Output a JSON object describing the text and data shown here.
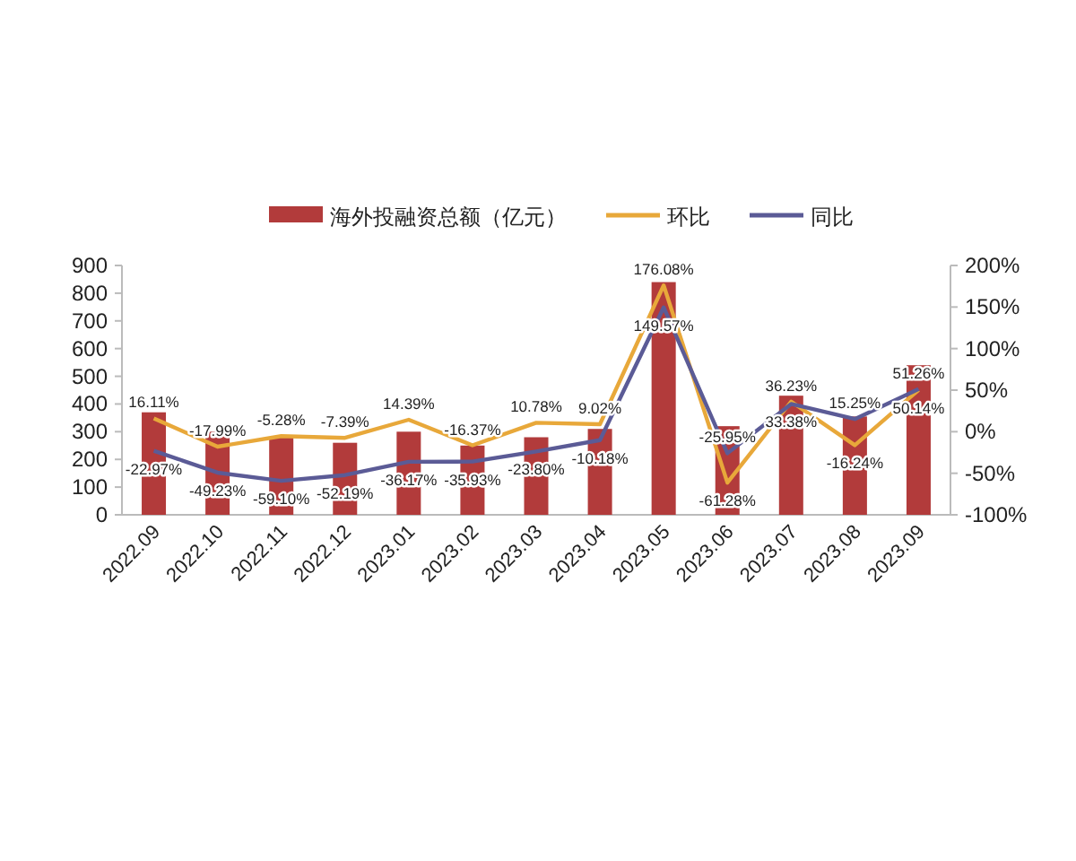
{
  "chart_data": {
    "type": "bar",
    "categories": [
      "2022.09",
      "2022.10",
      "2022.11",
      "2022.12",
      "2023.01",
      "2023.02",
      "2023.03",
      "2023.04",
      "2023.05",
      "2023.06",
      "2023.07",
      "2023.08",
      "2023.09"
    ],
    "series": [
      {
        "name": "海外投融资总额（亿元）",
        "color": "#b23b3b",
        "values": [
          370,
          300,
          280,
          260,
          300,
          250,
          280,
          310,
          840,
          320,
          430,
          355,
          540
        ]
      },
      {
        "name": "环比",
        "type": "line",
        "axis": "y2",
        "color": "#e8a83a",
        "values": [
          16.11,
          -17.99,
          -5.28,
          -7.39,
          14.39,
          -16.37,
          10.78,
          9.02,
          176.08,
          -61.28,
          36.23,
          -16.24,
          50.14
        ],
        "value_labels": [
          "16.11%",
          "-17.99%",
          "-5.28%",
          "-7.39%",
          "14.39%",
          "-16.37%",
          "10.78%",
          "9.02%",
          "176.08%",
          "-61.28%",
          "36.23%",
          "-16.24%",
          "50.14%"
        ]
      },
      {
        "name": "同比",
        "type": "line",
        "axis": "y2",
        "color": "#5b5b96",
        "values": [
          -22.97,
          -49.23,
          -59.1,
          -52.19,
          -36.17,
          -35.93,
          -23.8,
          -10.18,
          149.57,
          -25.95,
          33.38,
          15.25,
          51.26
        ],
        "value_labels": [
          "-22.97%",
          "-49.23%",
          "-59.10%",
          "-52.19%",
          "-36.17%",
          "-35.93%",
          "-23.80%",
          "-10.18%",
          "149.57%",
          "-25.95%",
          "33.38%",
          "15.25%",
          "51.26%"
        ]
      }
    ],
    "ylim": [
      0,
      900
    ],
    "yticks": [
      0,
      100,
      200,
      300,
      400,
      500,
      600,
      700,
      800,
      900
    ],
    "y2lim": [
      -100,
      200
    ],
    "y2ticks": [
      {
        "value": -100,
        "label": "-100%"
      },
      {
        "value": -50,
        "label": "-50%"
      },
      {
        "value": 0,
        "label": "0%"
      },
      {
        "value": 50,
        "label": "50%"
      },
      {
        "value": 100,
        "label": "100%"
      },
      {
        "value": 150,
        "label": "150%"
      },
      {
        "value": 200,
        "label": "200%"
      }
    ],
    "legend": "top",
    "grid": false,
    "marker": "none",
    "line_style": "solid"
  }
}
